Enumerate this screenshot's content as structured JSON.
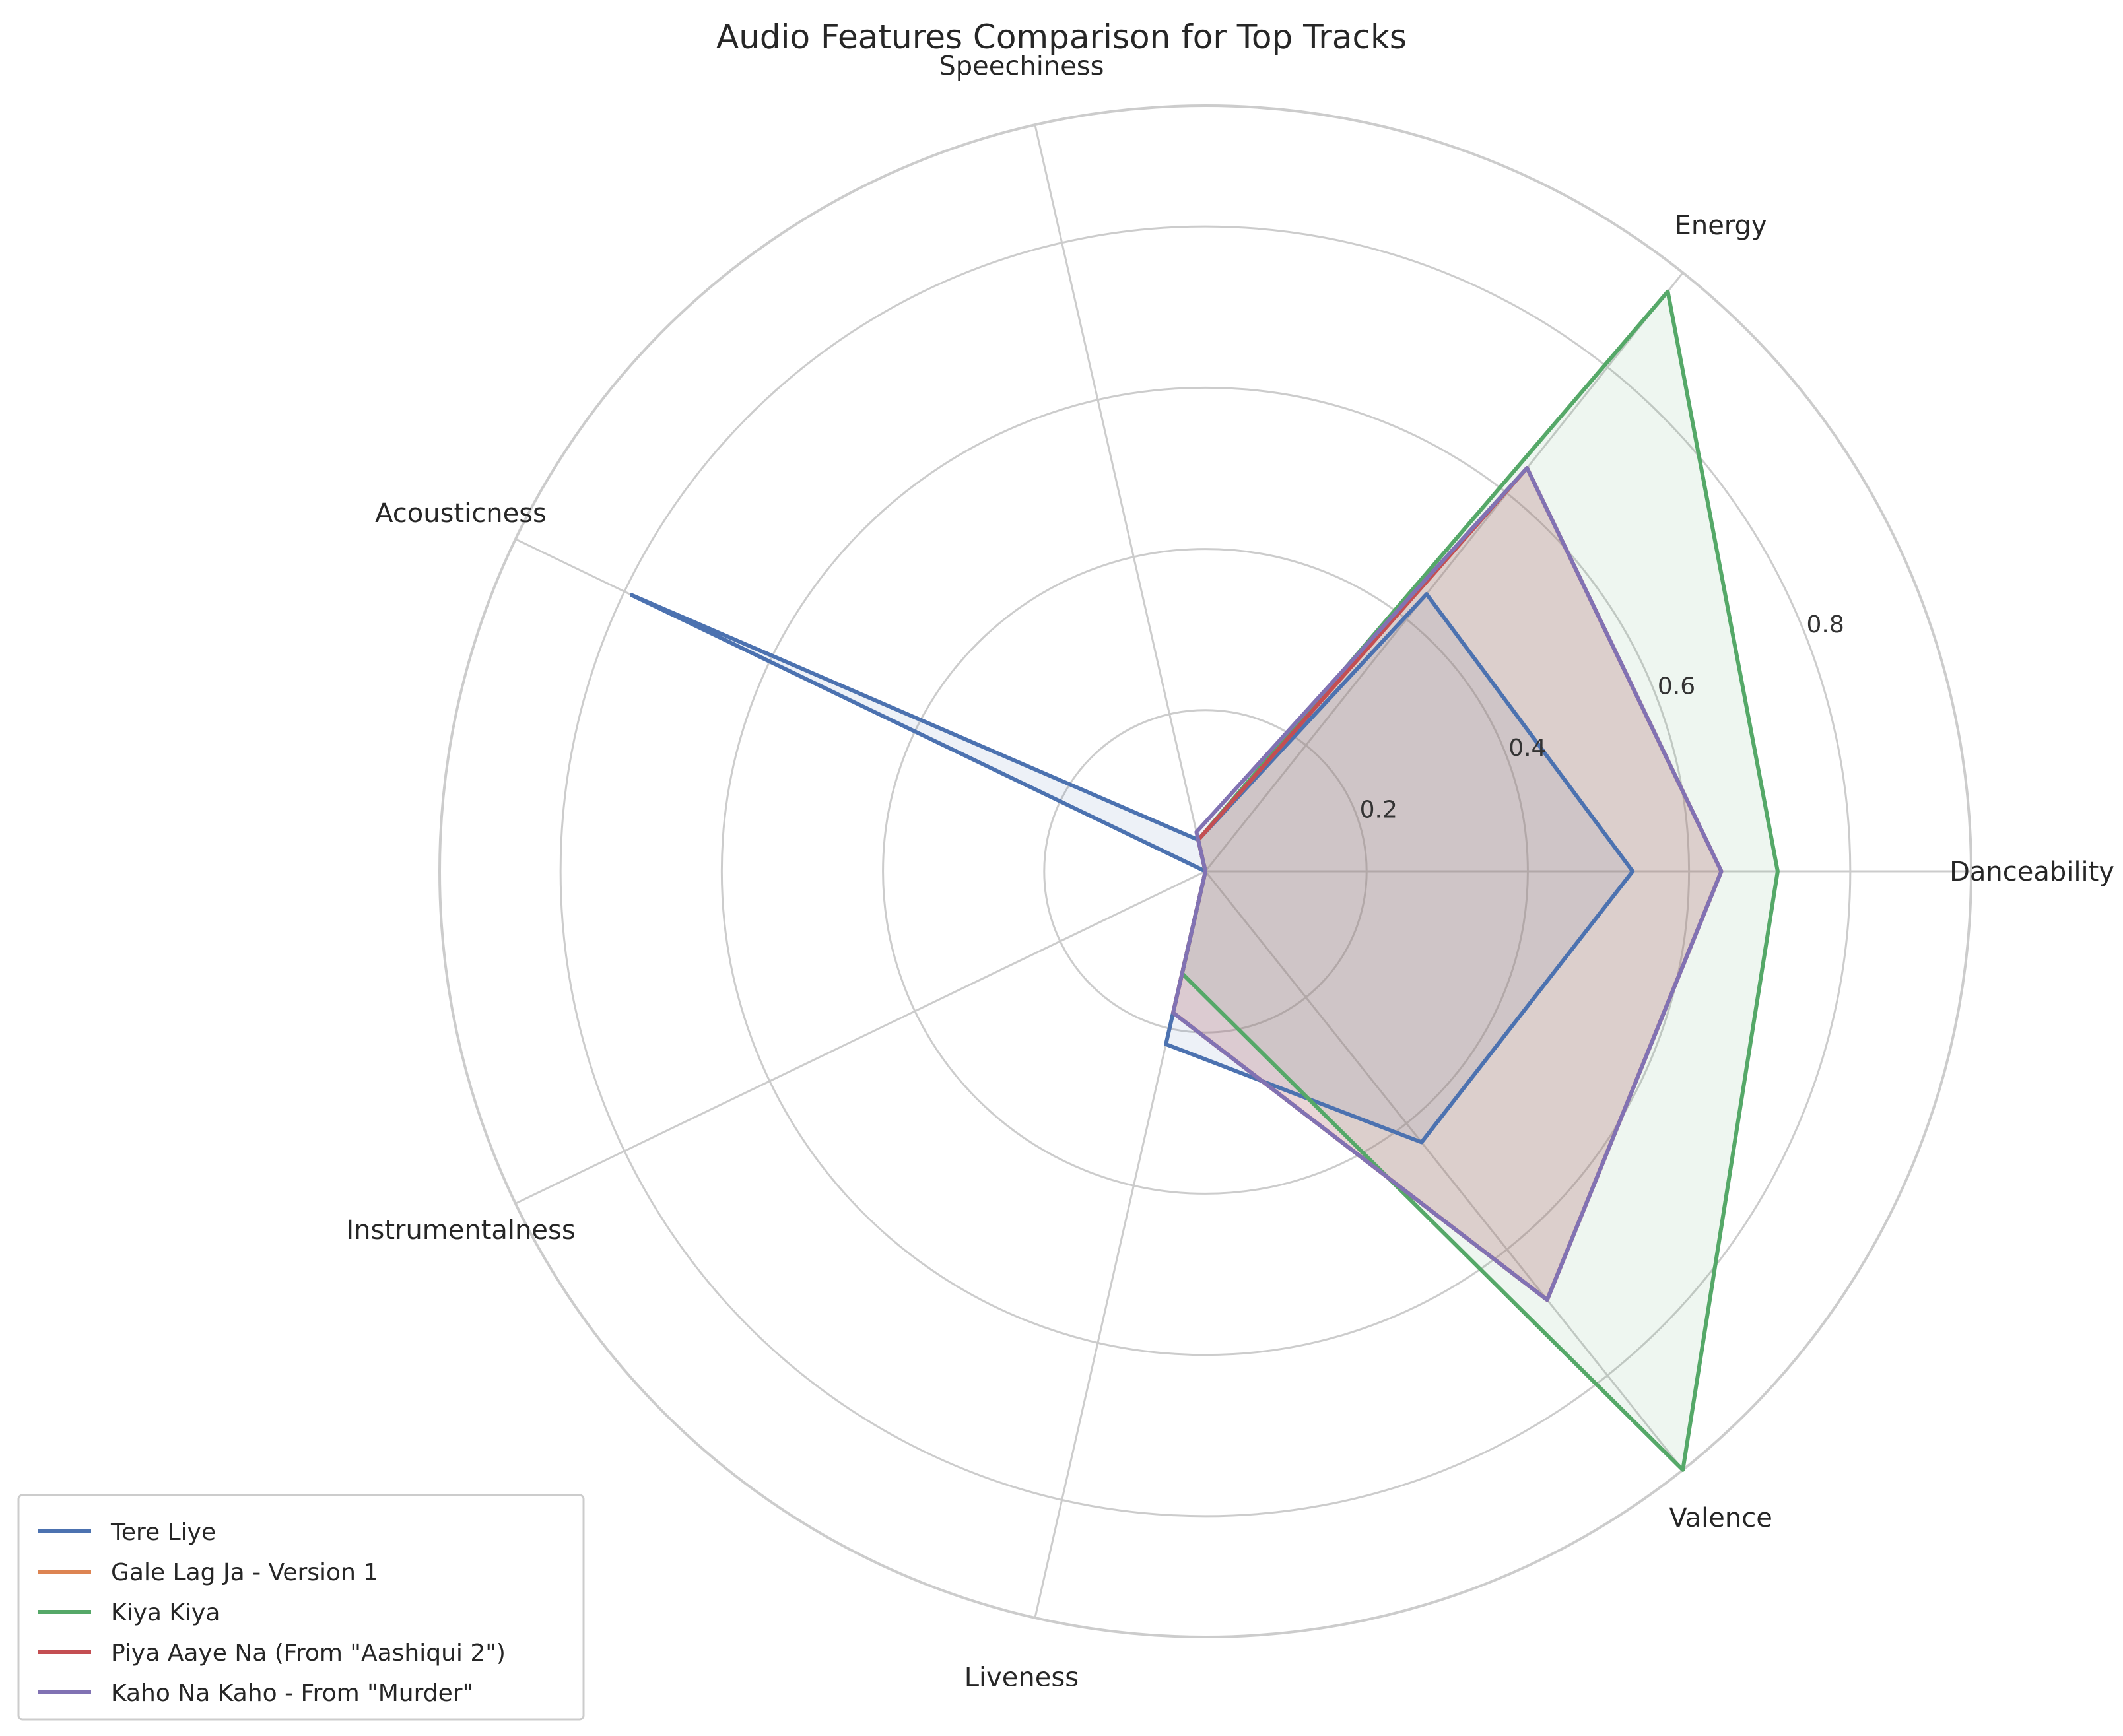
{
  "chart_data": {
    "type": "radar",
    "title": "Audio Features Comparison for Top Tracks",
    "axes": [
      "Danceability",
      "Energy",
      "Speechiness",
      "Acousticness",
      "Instrumentalness",
      "Liveness",
      "Valence"
    ],
    "radial_ticks": [
      "0.2",
      "0.4",
      "0.6",
      "0.8"
    ],
    "rlim": [
      0,
      0.95
    ],
    "grid": true,
    "legend_position": "lower-left",
    "series": [
      {
        "name": "Tere Liye",
        "color": "#4c72b0",
        "values": [
          0.53,
          0.44,
          0.04,
          0.79,
          0.0,
          0.22,
          0.43
        ]
      },
      {
        "name": "Gale Lag Ja - Version 1",
        "color": "#dd8452",
        "values": [
          0.64,
          0.64,
          0.04,
          0.0,
          0.0,
          0.18,
          0.68
        ]
      },
      {
        "name": "Kiya Kiya",
        "color": "#55a868",
        "values": [
          0.71,
          0.92,
          0.04,
          0.0,
          0.0,
          0.13,
          0.95
        ]
      },
      {
        "name": "Piya Aaye Na (From \"Aashiqui 2\")",
        "color": "#c44e52",
        "values": [
          0.64,
          0.64,
          0.04,
          0.0,
          0.0,
          0.18,
          0.68
        ]
      },
      {
        "name": "Kaho Na Kaho - From \"Murder\"",
        "color": "#8172b3",
        "values": [
          0.64,
          0.64,
          0.05,
          0.0,
          0.0,
          0.18,
          0.68
        ]
      }
    ]
  }
}
